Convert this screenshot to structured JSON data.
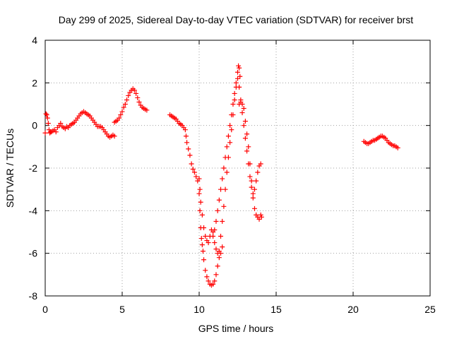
{
  "chart_data": {
    "type": "scatter",
    "title": "Day 299 of 2025, Sidereal Day-to-day VTEC variation (SDTVAR) for receiver brst",
    "xlabel": "GPS time / hours",
    "ylabel": "SDTVAR / TECUs",
    "xlim": [
      0,
      25
    ],
    "ylim": [
      -8,
      4
    ],
    "x_ticks": [
      0,
      5,
      10,
      15,
      20,
      25
    ],
    "y_ticks": [
      -8,
      -6,
      -4,
      -2,
      0,
      2,
      4
    ],
    "grid": true,
    "legend": "none",
    "marker": "plus",
    "series": [
      {
        "color": "#ff0000",
        "points": [
          [
            0.0,
            -0.35
          ],
          [
            0.05,
            0.55
          ],
          [
            0.1,
            0.5
          ],
          [
            0.15,
            0.35
          ],
          [
            0.2,
            0.1
          ],
          [
            0.25,
            -0.2
          ],
          [
            0.3,
            -0.35
          ],
          [
            0.35,
            -0.3
          ],
          [
            0.4,
            -0.3
          ],
          [
            0.5,
            -0.25
          ],
          [
            0.6,
            -0.2
          ],
          [
            0.7,
            -0.3
          ],
          [
            0.8,
            -0.1
          ],
          [
            0.9,
            0.0
          ],
          [
            1.0,
            0.1
          ],
          [
            1.1,
            -0.05
          ],
          [
            1.2,
            -0.1
          ],
          [
            1.3,
            -0.15
          ],
          [
            1.4,
            -0.05
          ],
          [
            1.5,
            -0.1
          ],
          [
            1.6,
            0.0
          ],
          [
            1.7,
            0.05
          ],
          [
            1.8,
            0.1
          ],
          [
            1.9,
            0.15
          ],
          [
            2.0,
            0.25
          ],
          [
            2.1,
            0.35
          ],
          [
            2.2,
            0.45
          ],
          [
            2.3,
            0.55
          ],
          [
            2.4,
            0.6
          ],
          [
            2.5,
            0.65
          ],
          [
            2.6,
            0.6
          ],
          [
            2.7,
            0.55
          ],
          [
            2.8,
            0.5
          ],
          [
            2.9,
            0.45
          ],
          [
            3.0,
            0.35
          ],
          [
            3.1,
            0.25
          ],
          [
            3.2,
            0.15
          ],
          [
            3.3,
            0.05
          ],
          [
            3.4,
            -0.05
          ],
          [
            3.5,
            -0.05
          ],
          [
            3.6,
            -0.05
          ],
          [
            3.7,
            -0.1
          ],
          [
            3.8,
            -0.2
          ],
          [
            3.9,
            -0.3
          ],
          [
            4.0,
            -0.4
          ],
          [
            4.1,
            -0.5
          ],
          [
            4.2,
            -0.55
          ],
          [
            4.3,
            -0.5
          ],
          [
            4.4,
            -0.45
          ],
          [
            4.5,
            -0.5
          ],
          [
            4.5,
            0.15
          ],
          [
            4.6,
            0.2
          ],
          [
            4.7,
            0.25
          ],
          [
            4.8,
            0.35
          ],
          [
            4.9,
            0.5
          ],
          [
            5.0,
            0.65
          ],
          [
            5.1,
            0.85
          ],
          [
            5.2,
            1.0
          ],
          [
            5.3,
            1.2
          ],
          [
            5.4,
            1.4
          ],
          [
            5.5,
            1.55
          ],
          [
            5.6,
            1.65
          ],
          [
            5.7,
            1.72
          ],
          [
            5.8,
            1.65
          ],
          [
            5.9,
            1.5
          ],
          [
            6.0,
            1.3
          ],
          [
            6.1,
            1.1
          ],
          [
            6.2,
            0.95
          ],
          [
            6.3,
            0.85
          ],
          [
            6.4,
            0.8
          ],
          [
            6.5,
            0.75
          ],
          [
            6.6,
            0.72
          ],
          [
            8.1,
            0.5
          ],
          [
            8.2,
            0.45
          ],
          [
            8.3,
            0.4
          ],
          [
            8.4,
            0.35
          ],
          [
            8.5,
            0.3
          ],
          [
            8.6,
            0.2
          ],
          [
            8.7,
            0.1
          ],
          [
            8.8,
            0.05
          ],
          [
            8.9,
            0.0
          ],
          [
            9.0,
            -0.1
          ],
          [
            9.1,
            -0.2
          ],
          [
            9.15,
            -0.5
          ],
          [
            9.2,
            -0.8
          ],
          [
            9.3,
            -1.1
          ],
          [
            9.4,
            -1.4
          ],
          [
            9.5,
            -1.8
          ],
          [
            9.6,
            -2.05
          ],
          [
            9.7,
            -2.2
          ],
          [
            9.8,
            -2.4
          ],
          [
            9.9,
            -2.6
          ],
          [
            10.0,
            -3.2
          ],
          [
            10.05,
            -4.0
          ],
          [
            10.1,
            -4.8
          ],
          [
            10.15,
            -5.3
          ],
          [
            10.2,
            -5.6
          ],
          [
            10.25,
            -5.9
          ],
          [
            10.3,
            -6.3
          ],
          [
            10.4,
            -6.8
          ],
          [
            10.5,
            -7.1
          ],
          [
            10.6,
            -7.3
          ],
          [
            10.7,
            -7.45
          ],
          [
            10.8,
            -7.5
          ],
          [
            10.9,
            -7.45
          ],
          [
            11.0,
            -7.3
          ],
          [
            11.1,
            -7.0
          ],
          [
            11.2,
            -6.6
          ],
          [
            11.3,
            -6.2
          ],
          [
            11.4,
            -6.0
          ],
          [
            11.5,
            -5.7
          ],
          [
            10.0,
            -2.5
          ],
          [
            10.05,
            -3.0
          ],
          [
            10.1,
            -3.6
          ],
          [
            10.2,
            -4.2
          ],
          [
            10.3,
            -4.8
          ],
          [
            10.4,
            -5.2
          ],
          [
            10.5,
            -5.4
          ],
          [
            10.6,
            -5.5
          ],
          [
            10.7,
            -5.2
          ],
          [
            10.8,
            -4.9
          ],
          [
            10.9,
            -5.0
          ],
          [
            11.0,
            -4.9
          ],
          [
            11.1,
            -4.5
          ],
          [
            11.2,
            -4.0
          ],
          [
            11.3,
            -3.5
          ],
          [
            11.4,
            -3.0
          ],
          [
            11.5,
            -2.5
          ],
          [
            11.6,
            -2.0
          ],
          [
            11.7,
            -1.5
          ],
          [
            11.8,
            -1.0
          ],
          [
            11.9,
            -0.5
          ],
          [
            12.0,
            0.0
          ],
          [
            12.1,
            0.5
          ],
          [
            12.2,
            1.0
          ],
          [
            12.3,
            1.5
          ],
          [
            12.4,
            2.0
          ],
          [
            12.5,
            2.5
          ],
          [
            12.55,
            2.8
          ],
          [
            12.6,
            2.7
          ],
          [
            12.65,
            2.3
          ],
          [
            10.9,
            -5.2
          ],
          [
            11.0,
            -5.5
          ],
          [
            11.1,
            -5.8
          ],
          [
            11.2,
            -6.0
          ],
          [
            11.3,
            -5.9
          ],
          [
            11.4,
            -5.2
          ],
          [
            11.5,
            -4.5
          ],
          [
            11.6,
            -3.8
          ],
          [
            11.7,
            -3.0
          ],
          [
            11.8,
            -2.2
          ],
          [
            11.9,
            -1.5
          ],
          [
            12.0,
            -0.8
          ],
          [
            12.1,
            -0.2
          ],
          [
            12.2,
            0.5
          ],
          [
            12.3,
            1.2
          ],
          [
            12.4,
            1.8
          ],
          [
            12.5,
            2.2
          ],
          [
            12.6,
            1.8
          ],
          [
            12.7,
            1.2
          ],
          [
            12.8,
            0.6
          ],
          [
            12.9,
            0.0
          ],
          [
            13.0,
            -0.6
          ],
          [
            13.1,
            -1.2
          ],
          [
            13.2,
            -1.8
          ],
          [
            13.3,
            -2.4
          ],
          [
            13.4,
            -2.9
          ],
          [
            13.5,
            -3.2
          ],
          [
            13.6,
            -3.0
          ],
          [
            13.7,
            -2.6
          ],
          [
            13.8,
            -2.2
          ],
          [
            13.9,
            -1.9
          ],
          [
            14.0,
            -1.8
          ],
          [
            12.6,
            1.0
          ],
          [
            12.7,
            1.1
          ],
          [
            12.8,
            1.0
          ],
          [
            12.9,
            0.8
          ],
          [
            13.0,
            0.2
          ],
          [
            13.1,
            -0.4
          ],
          [
            13.2,
            -1.0
          ],
          [
            13.3,
            -1.8
          ],
          [
            13.4,
            -2.6
          ],
          [
            13.5,
            -3.4
          ],
          [
            13.6,
            -3.9
          ],
          [
            13.7,
            -4.2
          ],
          [
            13.8,
            -4.3
          ],
          [
            13.9,
            -4.4
          ],
          [
            14.0,
            -4.2
          ],
          [
            14.05,
            -4.3
          ],
          [
            20.7,
            -0.75
          ],
          [
            20.8,
            -0.8
          ],
          [
            20.9,
            -0.85
          ],
          [
            21.0,
            -0.85
          ],
          [
            21.1,
            -0.8
          ],
          [
            21.2,
            -0.75
          ],
          [
            21.3,
            -0.7
          ],
          [
            21.4,
            -0.7
          ],
          [
            21.5,
            -0.65
          ],
          [
            21.6,
            -0.6
          ],
          [
            21.7,
            -0.55
          ],
          [
            21.8,
            -0.5
          ],
          [
            21.9,
            -0.5
          ],
          [
            22.0,
            -0.55
          ],
          [
            22.1,
            -0.6
          ],
          [
            22.2,
            -0.7
          ],
          [
            22.3,
            -0.8
          ],
          [
            22.4,
            -0.85
          ],
          [
            22.5,
            -0.9
          ],
          [
            22.6,
            -0.95
          ],
          [
            22.7,
            -0.95
          ],
          [
            22.8,
            -1.0
          ],
          [
            22.9,
            -1.05
          ]
        ]
      }
    ]
  }
}
